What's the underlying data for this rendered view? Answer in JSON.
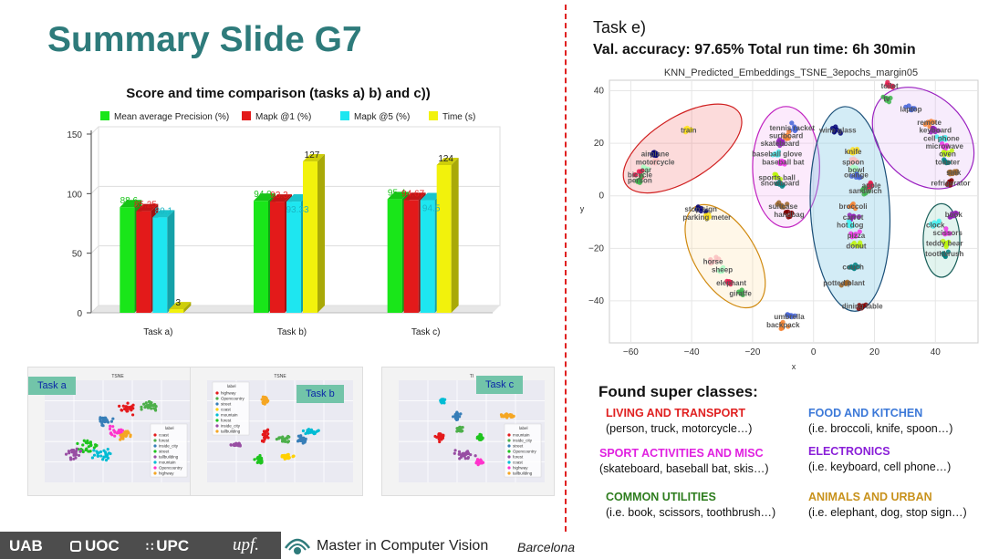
{
  "slide": {
    "title": "Summary Slide G7"
  },
  "bar_chart": {
    "title": "Score and time comparison (tasks a) b) and c))"
  },
  "chart_data": [
    {
      "type": "bar",
      "title": "Score and time comparison (tasks a) b) and c))",
      "categories": [
        "Task a)",
        "Task b)",
        "Task c)"
      ],
      "series": [
        {
          "name": "Mean average Precision (%)",
          "values": [
            88.6,
            94.0,
            95.4
          ],
          "labels": [
            "88.6",
            "94.0",
            "95.4"
          ],
          "color": "#19e619"
        },
        {
          "name": "Mapk @1 (%)",
          "values": [
            85.25,
            93.3,
            94.67
          ],
          "labels": [
            "85.25",
            "93.3",
            "94.67"
          ],
          "color": "#e31a1a"
        },
        {
          "name": "Mapk @5 (%)",
          "values": [
            80.1,
            93.33,
            94.5
          ],
          "labels": [
            "80.1",
            "93.33",
            "94.5"
          ],
          "color": "#1ee6f0"
        },
        {
          "name": "Time  (s)",
          "values": [
            3,
            127,
            124
          ],
          "labels": [
            "3",
            "127",
            "124"
          ],
          "color": "#f2f20c"
        }
      ],
      "yticks": [
        0,
        50,
        100,
        150
      ],
      "ylim": [
        0,
        150
      ],
      "legend": "top",
      "grid": true
    },
    {
      "type": "scatter",
      "title": "KNN_Predicted_Embeddings_TSNE_3epochs_margin05",
      "xlabel": "x",
      "ylabel": "y",
      "xlim": [
        -67,
        54
      ],
      "ylim": [
        -56,
        44
      ],
      "xticks": [
        -60,
        -40,
        -20,
        0,
        20,
        40
      ],
      "yticks": [
        40,
        20,
        0,
        -20,
        -40
      ],
      "grid": true,
      "labels": [
        {
          "text": "toilet",
          "x": 25,
          "y": 42
        },
        {
          "text": "tv",
          "x": 24,
          "y": 37
        },
        {
          "text": "laptop",
          "x": 32,
          "y": 33
        },
        {
          "text": "remote",
          "x": 38,
          "y": 28
        },
        {
          "text": "keyboard",
          "x": 40,
          "y": 25
        },
        {
          "text": "cell phone",
          "x": 42,
          "y": 22
        },
        {
          "text": "microwave",
          "x": 43,
          "y": 19
        },
        {
          "text": "oven",
          "x": 44,
          "y": 16
        },
        {
          "text": "toaster",
          "x": 44,
          "y": 13
        },
        {
          "text": "sink",
          "x": 46,
          "y": 9
        },
        {
          "text": "refrigerator",
          "x": 45,
          "y": 5
        },
        {
          "text": "airplane",
          "x": -52,
          "y": 16
        },
        {
          "text": "train",
          "x": -41,
          "y": 25
        },
        {
          "text": "motorcycle",
          "x": -52,
          "y": 13
        },
        {
          "text": "car",
          "x": -55,
          "y": 10
        },
        {
          "text": "bicycle",
          "x": -57,
          "y": 8
        },
        {
          "text": "person",
          "x": -57,
          "y": 6
        },
        {
          "text": "tennis racket",
          "x": -7,
          "y": 26
        },
        {
          "text": "surfboard",
          "x": -9,
          "y": 23
        },
        {
          "text": "skateboard",
          "x": -11,
          "y": 20
        },
        {
          "text": "baseball glove",
          "x": -12,
          "y": 16
        },
        {
          "text": "baseball bat",
          "x": -10,
          "y": 13
        },
        {
          "text": "sports ball",
          "x": -12,
          "y": 7
        },
        {
          "text": "snowboard",
          "x": -11,
          "y": 5
        },
        {
          "text": "suitcase",
          "x": -10,
          "y": -4
        },
        {
          "text": "handbag",
          "x": -8,
          "y": -7
        },
        {
          "text": "wine glass",
          "x": 8,
          "y": 25
        },
        {
          "text": "knife",
          "x": 13,
          "y": 17
        },
        {
          "text": "spoon",
          "x": 13,
          "y": 13
        },
        {
          "text": "bowl",
          "x": 14,
          "y": 10
        },
        {
          "text": "apple",
          "x": 19,
          "y": 4
        },
        {
          "text": "sandwich",
          "x": 17,
          "y": 2
        },
        {
          "text": "orange",
          "x": 14,
          "y": 8
        },
        {
          "text": "broccoli",
          "x": 13,
          "y": -4
        },
        {
          "text": "carrot",
          "x": 13,
          "y": -8
        },
        {
          "text": "hot dog",
          "x": 12,
          "y": -11
        },
        {
          "text": "pizza",
          "x": 14,
          "y": -15
        },
        {
          "text": "donut",
          "x": 14,
          "y": -19
        },
        {
          "text": "couch",
          "x": 13,
          "y": -27
        },
        {
          "text": "potted plant",
          "x": 10,
          "y": -33
        },
        {
          "text": "dining table",
          "x": 16,
          "y": -42
        },
        {
          "text": "stop sign",
          "x": -37,
          "y": -5
        },
        {
          "text": "parking meter",
          "x": -35,
          "y": -8
        },
        {
          "text": "horse",
          "x": -33,
          "y": -25
        },
        {
          "text": "sheep",
          "x": -30,
          "y": -28
        },
        {
          "text": "elephant",
          "x": -27,
          "y": -33
        },
        {
          "text": "giraffe",
          "x": -24,
          "y": -37
        },
        {
          "text": "umbrella",
          "x": -8,
          "y": -46
        },
        {
          "text": "backpack",
          "x": -10,
          "y": -49
        },
        {
          "text": "book",
          "x": 46,
          "y": -7
        },
        {
          "text": "clock",
          "x": 40,
          "y": -11
        },
        {
          "text": "scissors",
          "x": 44,
          "y": -14
        },
        {
          "text": "teddy bear",
          "x": 43,
          "y": -18
        },
        {
          "text": "toothbrush",
          "x": 43,
          "y": -22
        }
      ]
    }
  ],
  "thumbnails": [
    {
      "tag": "Task a",
      "title": "TSNE",
      "legend_title": "label",
      "legend": [
        "coast",
        "forest",
        "inside_city",
        "street",
        "tallbuilding",
        "mountain",
        "Opencountry",
        "highway"
      ],
      "colors": [
        "#e41a1c",
        "#4daf4a",
        "#377eb8",
        "#1ec41e",
        "#984ea3",
        "#00bcd4",
        "#ff33cc",
        "#f5a623"
      ]
    },
    {
      "tag": "Task b",
      "title": "TSNE",
      "legend_title": "label",
      "legend": [
        "highway",
        "Opencountry",
        "street",
        "coast",
        "mountain",
        "forest",
        "inside_city",
        "tallbuilding"
      ],
      "colors": [
        "#e41a1c",
        "#4daf4a",
        "#377eb8",
        "#ffd000",
        "#00bcd4",
        "#1ec41e",
        "#984ea3",
        "#f5a623"
      ]
    },
    {
      "tag": "Task c",
      "title": "TI",
      "legend_title": "label",
      "legend": [
        "mountain",
        "inside_city",
        "street",
        "Opencountry",
        "forest",
        "coast",
        "highway",
        "tallbuilding"
      ],
      "colors": [
        "#e41a1c",
        "#4daf4a",
        "#377eb8",
        "#1ec41e",
        "#984ea3",
        "#00bcd4",
        "#ff33cc",
        "#f5a623"
      ]
    }
  ],
  "task_e": {
    "title": "Task e)",
    "metrics": "Val. accuracy: 97.65%  Total run time: 6h 30min",
    "plot_title": "KNN_Predicted_Embeddings_TSNE_3epochs_margin05"
  },
  "super_classes": {
    "title": "Found super classes:",
    "items": [
      {
        "name": "LIVING AND TRANSPORT",
        "desc": "(person, truck, motorcycle…)",
        "color": "#e02020"
      },
      {
        "name": "FOOD AND KITCHEN",
        "desc": "(i.e. broccoli, knife, spoon…)",
        "color": "#3b78d8"
      },
      {
        "name": "SPORT ACTIVITIES AND MISC",
        "desc": "(skateboard, baseball bat, skis…)",
        "color": "#e020e0"
      },
      {
        "name": "ELECTRONICS",
        "desc": "(i.e. keyboard, cell phone…)",
        "color": "#8a1fd8"
      },
      {
        "name": "COMMON UTILITIES",
        "desc": "(i.e. book, scissors, toothbrush…)",
        "color": "#2e7d1e"
      },
      {
        "name": "ANIMALS AND URBAN",
        "desc": "(i.e. elephant, dog, stop sign…)",
        "color": "#c8921c"
      }
    ]
  },
  "footer": {
    "logos": [
      "UAB",
      "UOC",
      "UPC",
      "upf."
    ],
    "program": "Master in Computer Vision",
    "city": "Barcelona"
  }
}
